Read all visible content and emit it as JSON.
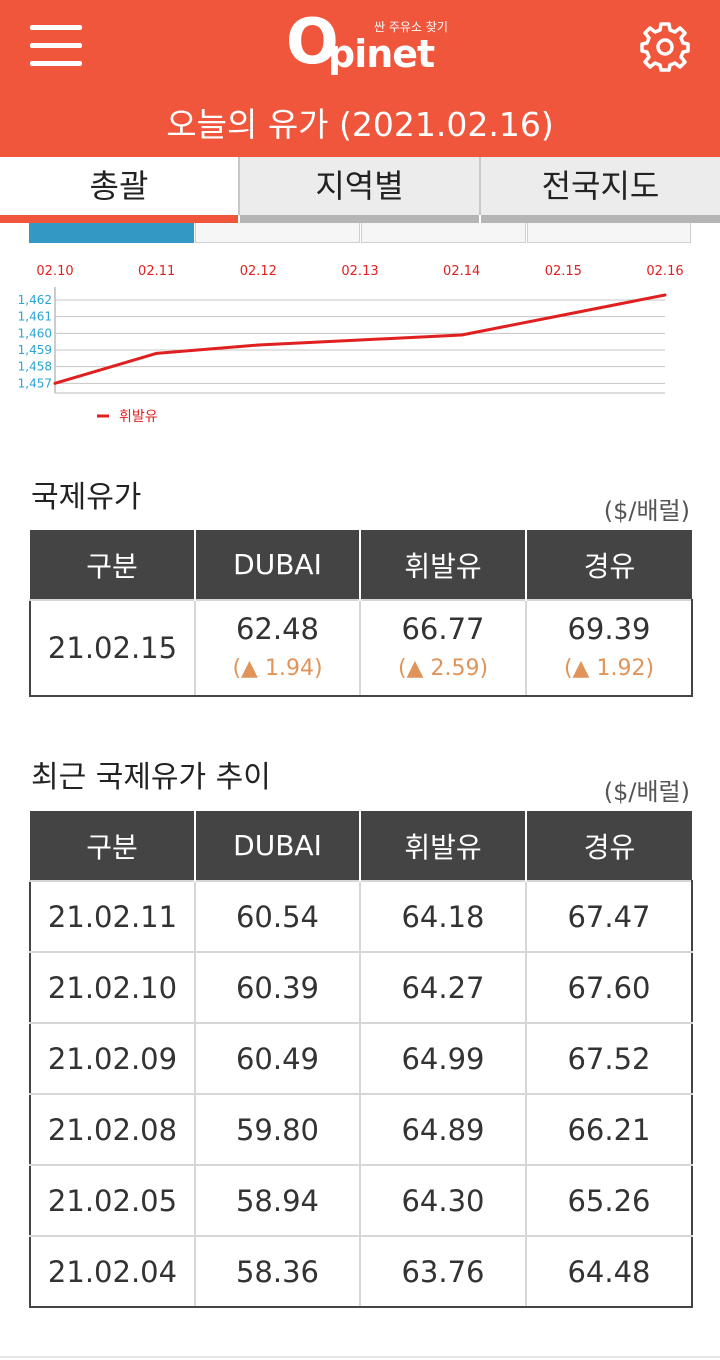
{
  "header": {
    "logo_o": "O",
    "logo_text": "pinet",
    "logo_tagline": "싼 주유소 찾기",
    "title": "오늘의 유가 (2021.02.16)",
    "bg_color": "#f0563c"
  },
  "tabs": [
    {
      "label": "총괄",
      "active": true
    },
    {
      "label": "지역별",
      "active": false
    },
    {
      "label": "전국지도",
      "active": false
    }
  ],
  "chart_data": {
    "type": "line",
    "categories": [
      "02.10",
      "02.11",
      "02.12",
      "02.13",
      "02.14",
      "02.15",
      "02.16"
    ],
    "y_ticks": [
      "1,462",
      "1,461",
      "1,460",
      "1,459",
      "1,458",
      "1,457"
    ],
    "ylim": [
      1456.9,
      1462.3
    ],
    "grid": true,
    "legend_position": "bottom-left",
    "series": [
      {
        "name": "휘발유",
        "color": "#e02020",
        "values": [
          1457.0,
          1458.8,
          1459.3,
          1459.6,
          1459.9,
          1461.1,
          1462.3
        ]
      }
    ]
  },
  "intl": {
    "title": "국제유가",
    "unit": "($/배럴)",
    "headers": [
      "구분",
      "DUBAI",
      "휘발유",
      "경유"
    ],
    "row": {
      "date": "21.02.15",
      "prices": [
        "62.48",
        "66.77",
        "69.39"
      ],
      "changes": [
        "(▲ 1.94)",
        "(▲ 2.59)",
        "(▲ 1.92)"
      ]
    }
  },
  "trend": {
    "title": "최근 국제유가 추이",
    "unit": "($/배럴)",
    "headers": [
      "구분",
      "DUBAI",
      "휘발유",
      "경유"
    ],
    "rows": [
      [
        "21.02.11",
        "60.54",
        "64.18",
        "67.47"
      ],
      [
        "21.02.10",
        "60.39",
        "64.27",
        "67.60"
      ],
      [
        "21.02.09",
        "60.49",
        "64.99",
        "67.52"
      ],
      [
        "21.02.08",
        "59.80",
        "64.89",
        "66.21"
      ],
      [
        "21.02.05",
        "58.94",
        "64.30",
        "65.26"
      ],
      [
        "21.02.04",
        "58.36",
        "63.76",
        "64.48"
      ]
    ]
  }
}
